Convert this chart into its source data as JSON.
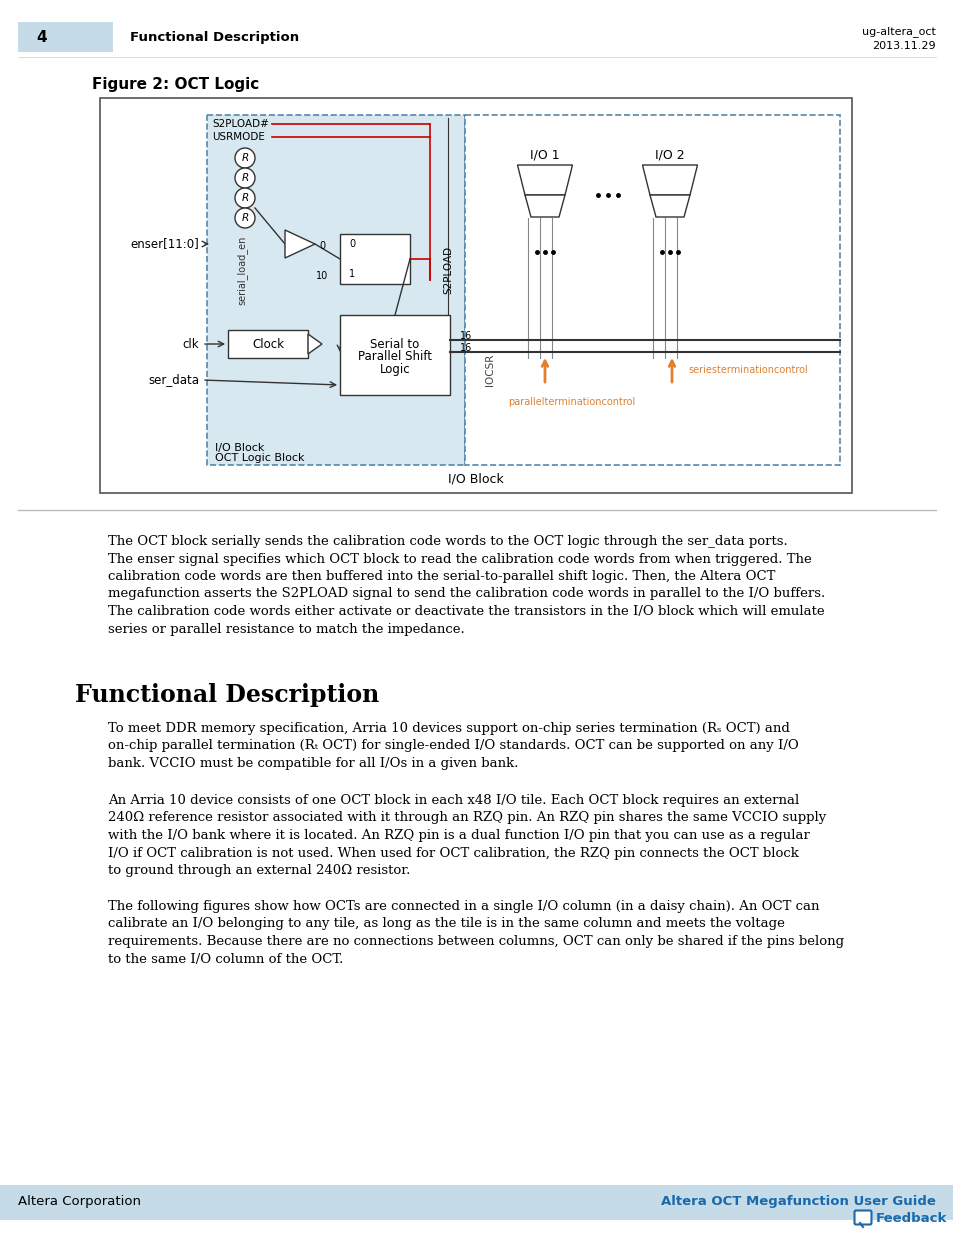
{
  "page_num": "4",
  "header_section": "Functional Description",
  "doc_id": "ug-altera_oct",
  "doc_date": "2013.11.29",
  "figure_title": "Figure 2: OCT Logic",
  "header_bg_color": "#c5dce8",
  "divider_color": "#bbbbbb",
  "footer_left": "Altera Corporation",
  "footer_right_text": "Altera OCT Megafunction User Guide",
  "footer_link_color": "#1a6aab",
  "feedback_color": "#1a6aab",
  "diagram_bg": "#d8e8f0",
  "red_line_color": "#cc0000",
  "orange_text_color": "#e08030",
  "footer_bar_color": "#c5dce8"
}
